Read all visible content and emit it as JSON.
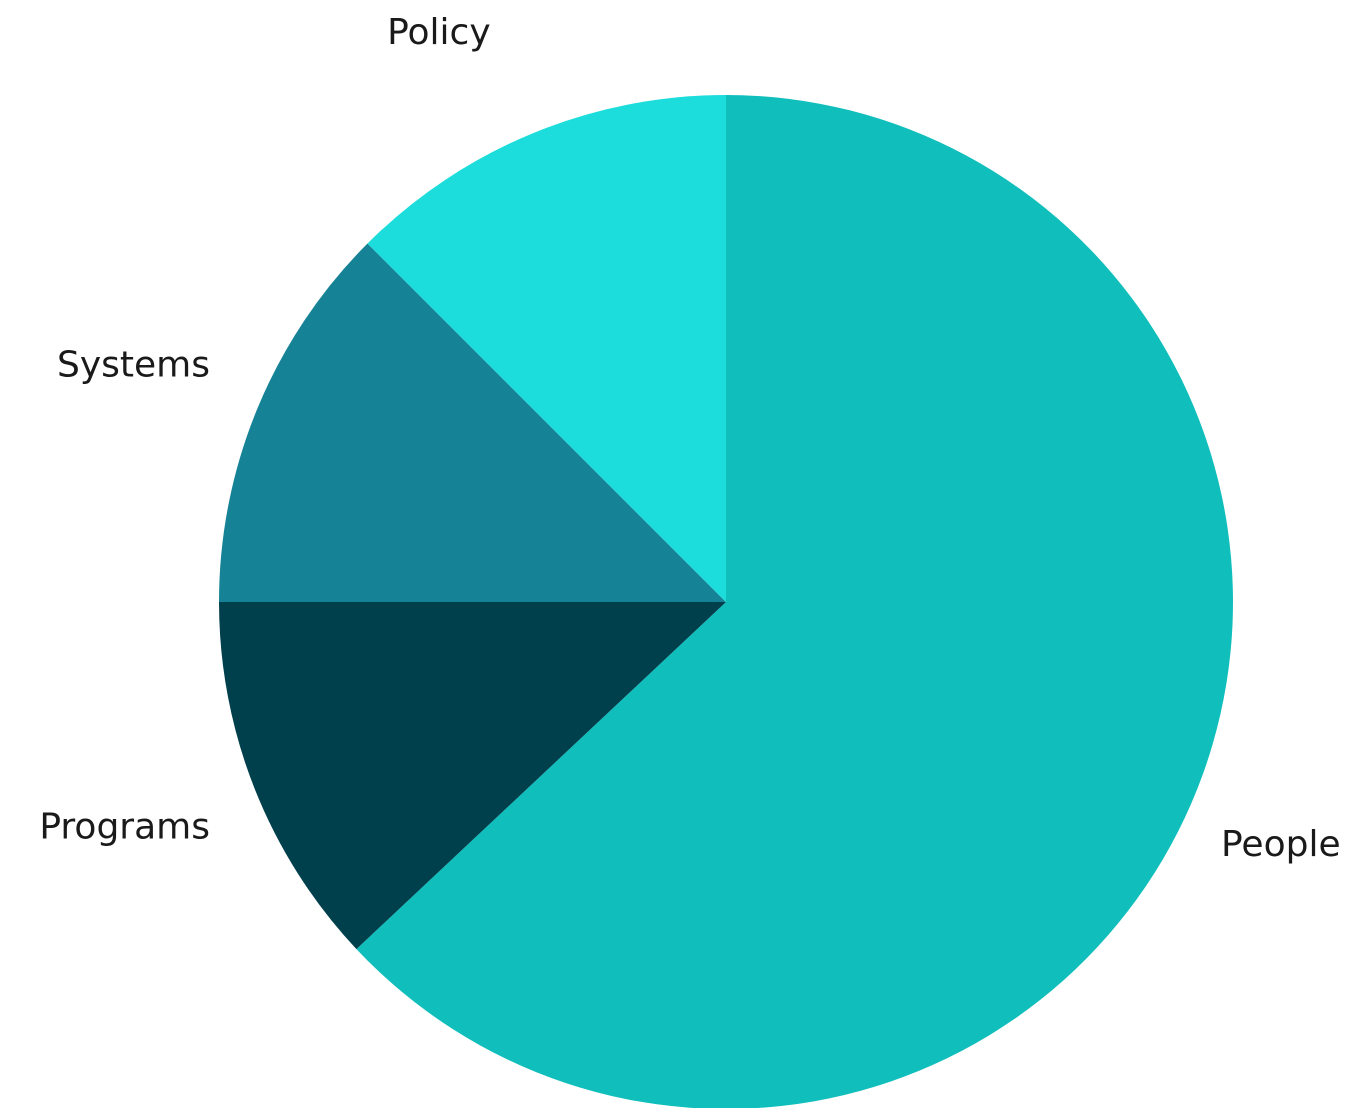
{
  "chart_data": {
    "type": "pie",
    "title": "",
    "start": "12 o'clock",
    "direction": "clockwise",
    "slices": [
      {
        "label": "People",
        "value": 63.0,
        "color": "#10bebc"
      },
      {
        "label": "Programs",
        "value": 12.0,
        "color": "#003f4c"
      },
      {
        "label": "Systems",
        "value": 12.5,
        "color": "#168296"
      },
      {
        "label": "Policy",
        "value": 12.5,
        "color": "#1cdddb"
      }
    ],
    "legend": "none",
    "labels": "outside"
  }
}
